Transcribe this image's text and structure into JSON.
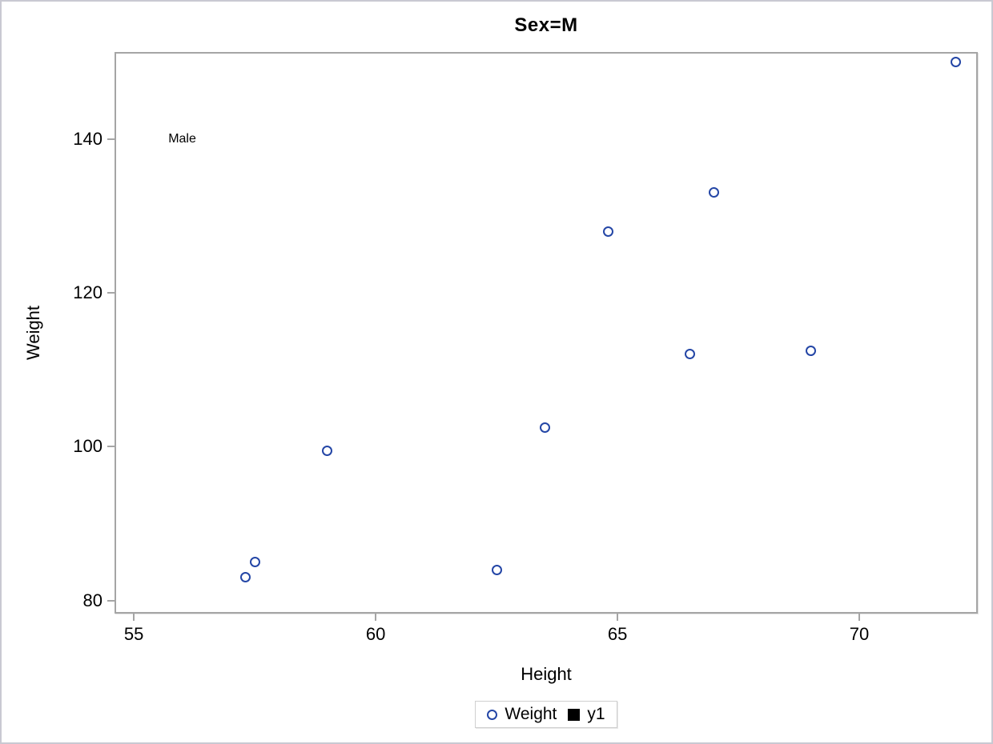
{
  "page": {
    "background_color": "#ffffff",
    "outer_border_color": "#c9c9d2",
    "frame_color": "#a5a5a5"
  },
  "chart_data": {
    "type": "scatter",
    "title": "Sex=M",
    "xlabel": "Height",
    "ylabel": "Weight",
    "xlim": [
      54.6,
      72.45
    ],
    "ylim": [
      78.3,
      151.3
    ],
    "x_ticks": [
      55,
      60,
      65,
      70
    ],
    "y_ticks": [
      80,
      100,
      120,
      140
    ],
    "grid": false,
    "legend_position": "bottom-center",
    "series": [
      {
        "name": "Weight",
        "marker": "circle-outline",
        "color": "#2446a6",
        "points": [
          {
            "x": 57.3,
            "y": 83.0
          },
          {
            "x": 57.5,
            "y": 85.0
          },
          {
            "x": 59.0,
            "y": 99.5
          },
          {
            "x": 62.5,
            "y": 84.0
          },
          {
            "x": 63.5,
            "y": 102.5
          },
          {
            "x": 64.8,
            "y": 128.0
          },
          {
            "x": 66.5,
            "y": 112.0
          },
          {
            "x": 67.0,
            "y": 133.0
          },
          {
            "x": 69.0,
            "y": 112.5
          },
          {
            "x": 72.0,
            "y": 150.0
          }
        ]
      }
    ],
    "annotations": [
      {
        "text": "Male",
        "x": 56.0,
        "y": 140.0,
        "color": "#000000"
      }
    ],
    "legend": [
      {
        "label": "Weight",
        "marker": "circle-outline",
        "color": "#2446a6"
      },
      {
        "label": "y1",
        "marker": "filled-square",
        "color": "#000000"
      }
    ]
  }
}
